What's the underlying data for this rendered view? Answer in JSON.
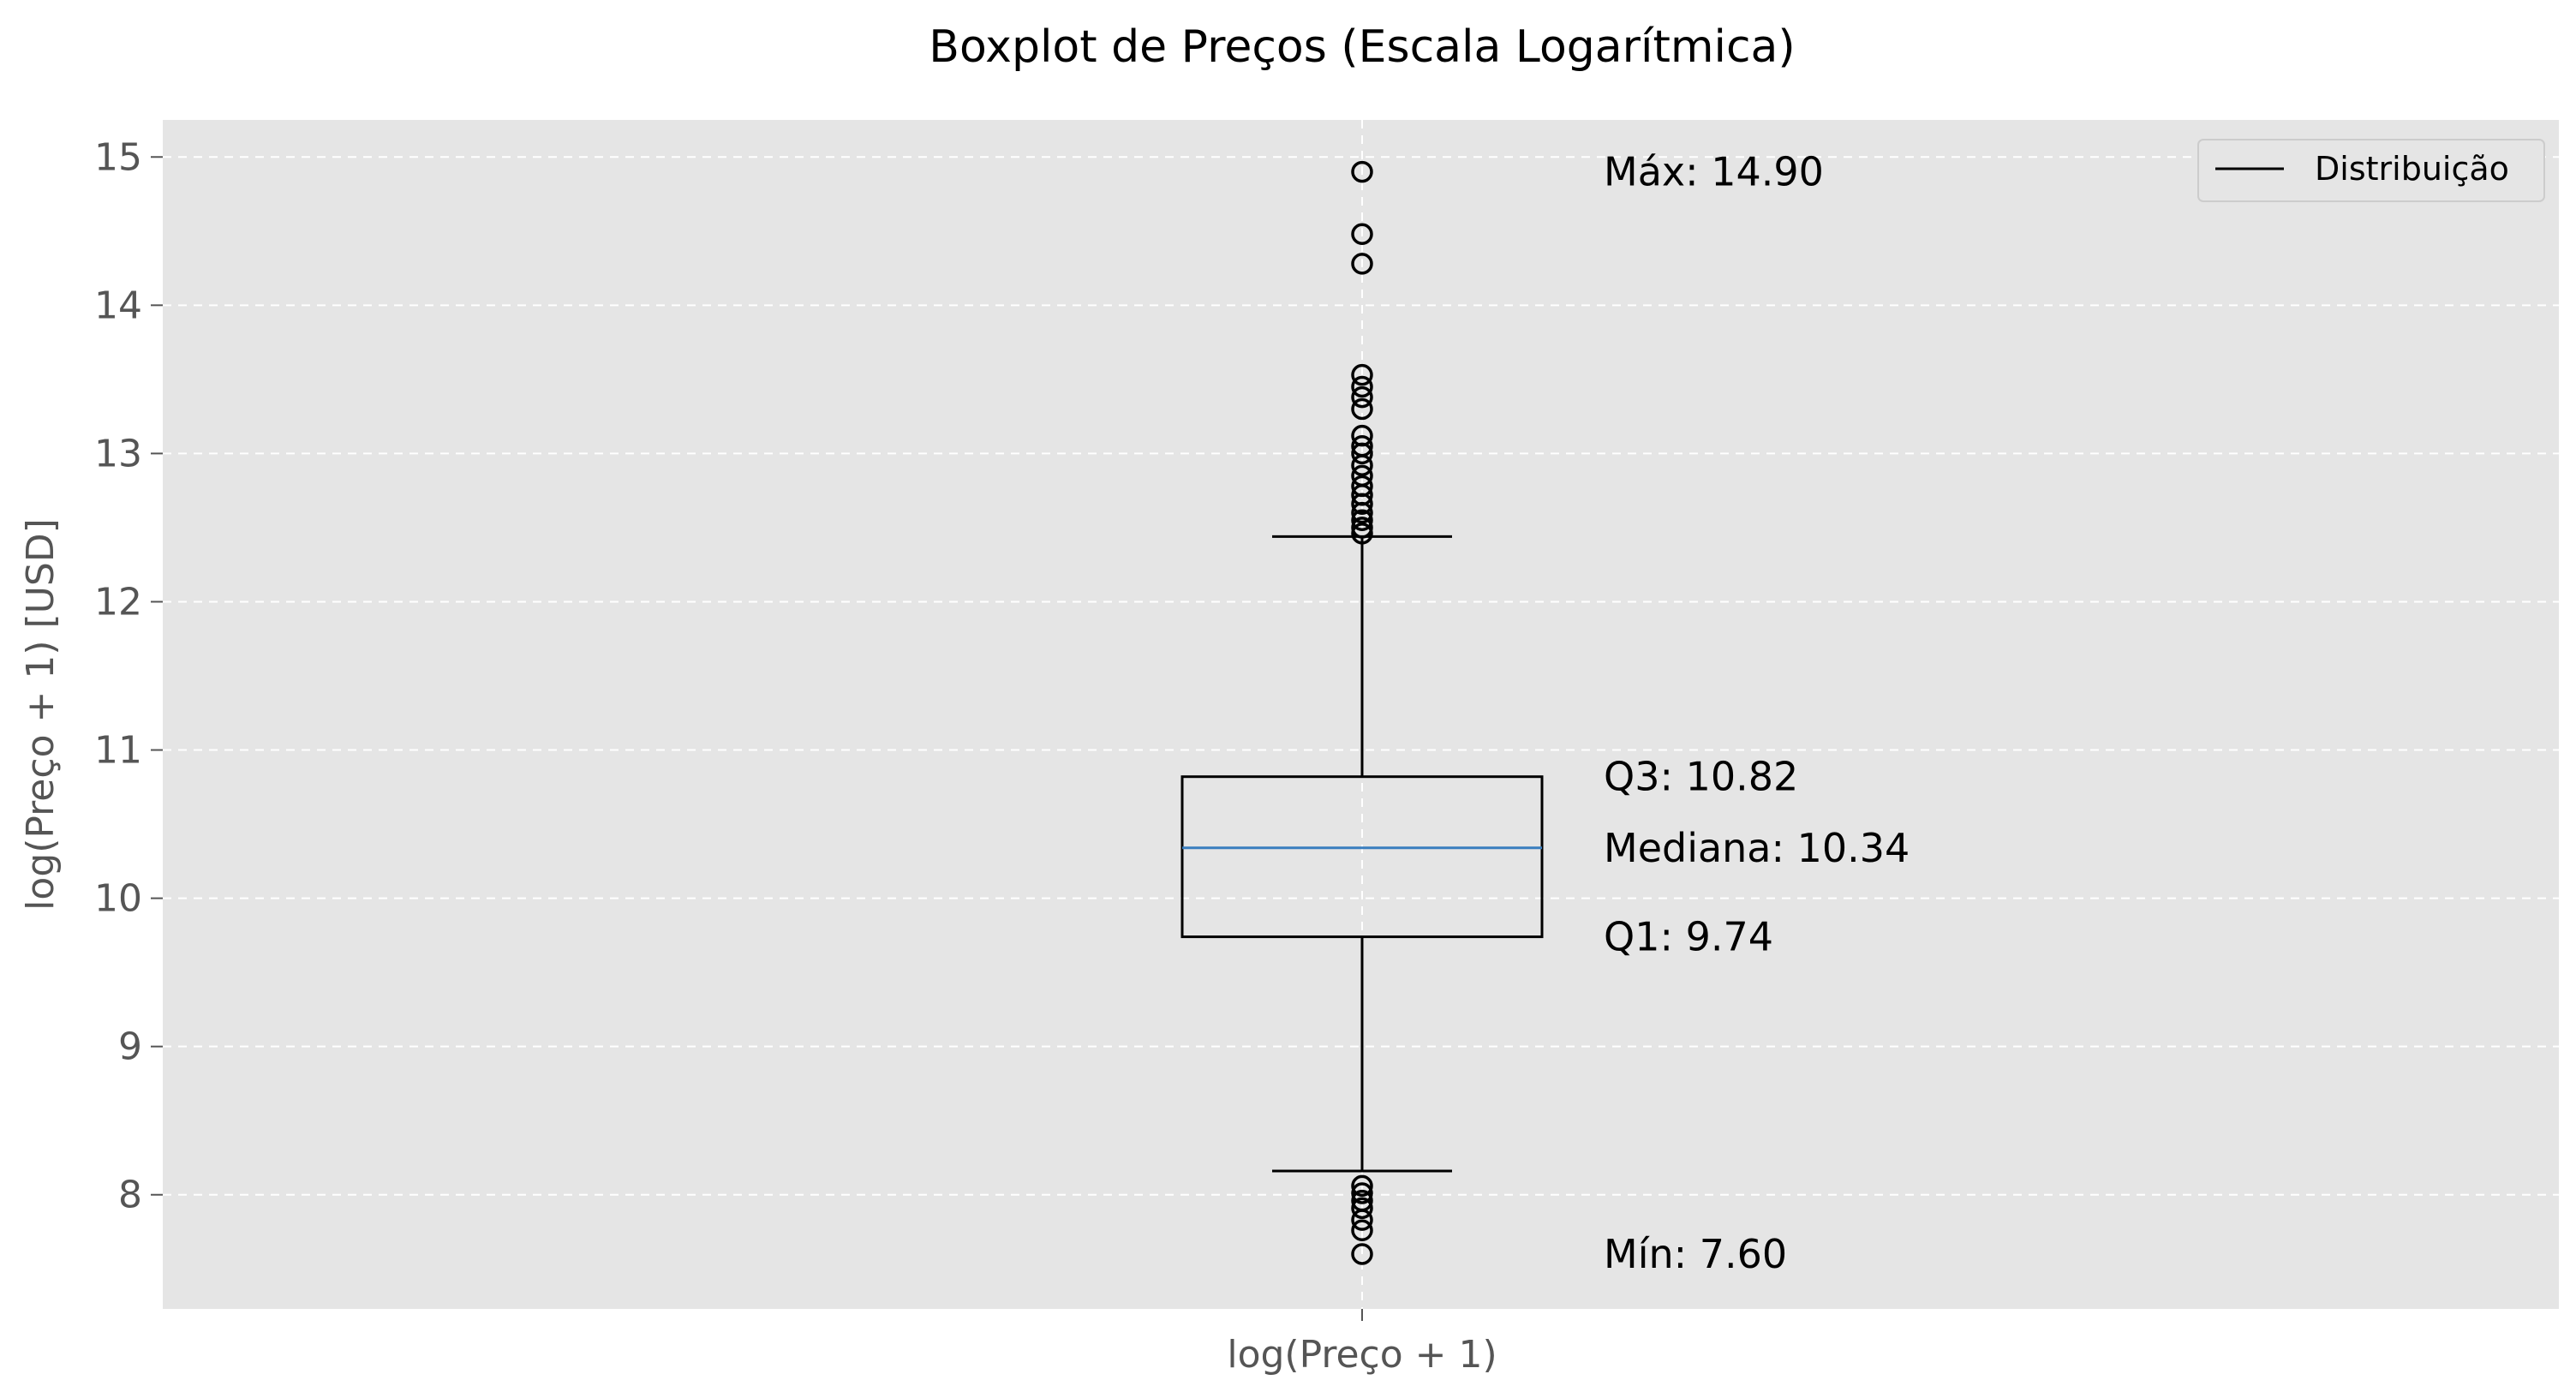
{
  "chart_data": {
    "type": "boxplot",
    "title": "Boxplot de Preços (Escala Logarítmica)",
    "xlabel": "",
    "ylabel": "log(Preço + 1) [USD]",
    "categories": [
      "log(Preço + 1)"
    ],
    "ylim": [
      7.23,
      15.25
    ],
    "yticks": [
      8,
      9,
      10,
      11,
      12,
      13,
      14,
      15
    ],
    "grid": true,
    "legend": {
      "position": "top-right",
      "entries": [
        "Distribuição"
      ]
    },
    "colors": {
      "background": "#e5e5e5",
      "grid": "#ffffff",
      "median": "#3a7ebf",
      "box": "#000000"
    },
    "stats": {
      "whisker_low": 8.16,
      "q1": 9.74,
      "median": 10.34,
      "q3": 10.82,
      "whisker_high": 12.44
    },
    "outliers": [
      14.9,
      14.48,
      14.28,
      13.53,
      13.45,
      13.38,
      13.3,
      13.12,
      13.05,
      13.0,
      12.92,
      12.85,
      12.78,
      12.72,
      12.66,
      12.6,
      12.55,
      12.5,
      12.46,
      8.06,
      8.01,
      7.96,
      7.91,
      7.83,
      7.76,
      7.6
    ],
    "annotations": [
      {
        "key": "max",
        "text": "Máx: 14.90",
        "y": 14.9
      },
      {
        "key": "q3",
        "text": "Q3: 10.82",
        "y": 10.82
      },
      {
        "key": "median",
        "text": "Mediana: 10.34",
        "y": 10.34
      },
      {
        "key": "q1",
        "text": "Q1: 9.74",
        "y": 9.74
      },
      {
        "key": "min",
        "text": "Mín: 7.60",
        "y": 7.6
      }
    ]
  }
}
